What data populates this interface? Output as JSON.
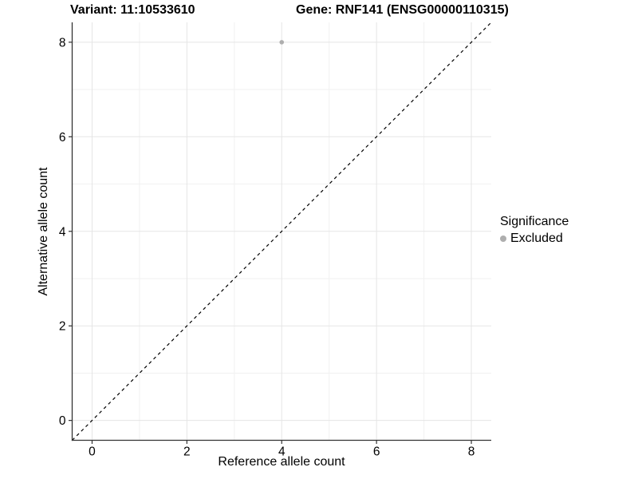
{
  "title": {
    "variant": "Variant: 11:10533610",
    "gene": "Gene: RNF141 (ENSG00000110315)"
  },
  "axes": {
    "xlabel": "Reference allele count",
    "ylabel": "Alternative allele count"
  },
  "legend": {
    "title": "Significance",
    "position": "right",
    "items": [
      {
        "label": "Excluded",
        "color": "#aeaeae"
      }
    ]
  },
  "colors": {
    "background": "#ffffff",
    "grid_major": "#e5e5e5",
    "grid_minor": "#f1f1f1",
    "axis_line": "#333333",
    "tick_mark": "#333333",
    "text": "#000000",
    "reference_line": "#000000",
    "excluded_point": "#aeaeae"
  },
  "chart_data": {
    "type": "scatter",
    "title_left": "Variant: 11:10533610",
    "title_right": "Gene: RNF141 (ENSG00000110315)",
    "xlabel": "Reference allele count",
    "ylabel": "Alternative allele count",
    "xlim": [
      -0.42,
      8.42
    ],
    "ylim": [
      -0.42,
      8.42
    ],
    "xticks": [
      0,
      2,
      4,
      6,
      8
    ],
    "yticks": [
      0,
      2,
      4,
      6,
      8
    ],
    "minor_xticks": [
      1,
      3,
      5,
      7
    ],
    "minor_yticks": [
      1,
      3,
      5,
      7
    ],
    "grid": true,
    "legend_position": "right",
    "series": [
      {
        "name": "Excluded",
        "color": "#aeaeae",
        "points": [
          {
            "x": 4,
            "y": 8
          }
        ]
      }
    ],
    "reference_line": {
      "type": "identity",
      "slope": 1,
      "intercept": 0,
      "style": "dashed",
      "color": "#000000"
    }
  }
}
